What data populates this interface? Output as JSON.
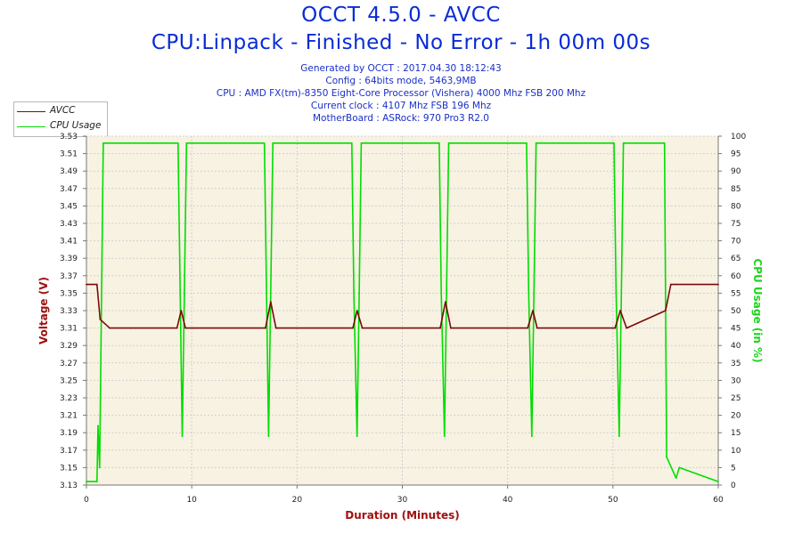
{
  "header": {
    "title": "OCCT 4.5.0 - AVCC",
    "subtitle": "CPU:Linpack - Finished - No Error - 1h 00m 00s",
    "info_lines": [
      "Generated by OCCT : 2017.04.30 18:12:43",
      "Config : 64bits mode, 5463,9MB",
      "CPU : AMD FX(tm)-8350 Eight-Core Processor (Vishera) 4000 Mhz FSB 200 Mhz",
      "Current clock : 4107 Mhz FSB 196 Mhz",
      "MotherBoard : ASRock: 970 Pro3 R2.0"
    ]
  },
  "legend": {
    "items": [
      {
        "label": "AVCC",
        "color": "#7a0a0a"
      },
      {
        "label": "CPU Usage",
        "color": "#00dd00"
      }
    ]
  },
  "colors": {
    "plot_bg": "#f8f2e2",
    "grid": "#d0d0d0",
    "avcc": "#7a0a0a",
    "cpu": "#00dd00",
    "left_axis_label": "#a01010",
    "right_axis_label": "#1ed41e",
    "x_axis_label": "#a01010"
  },
  "chart_data": {
    "type": "line",
    "xlabel": "Duration (Minutes)",
    "ylabel": "Voltage (V)",
    "y2label": "CPU Usage (in %)",
    "xlim": [
      0,
      60
    ],
    "ylim": [
      3.13,
      3.53
    ],
    "y2lim": [
      0,
      100
    ],
    "x_ticks": [
      "0",
      "10",
      "20",
      "30",
      "40",
      "50",
      "60"
    ],
    "y_ticks": [
      "3.13",
      "3.15",
      "3.17",
      "3.19",
      "3.21",
      "3.23",
      "3.25",
      "3.27",
      "3.29",
      "3.31",
      "3.33",
      "3.35",
      "3.37",
      "3.39",
      "3.41",
      "3.43",
      "3.45",
      "3.47",
      "3.49",
      "3.51",
      "3.53"
    ],
    "y2_ticks": [
      "0",
      "5",
      "10",
      "15",
      "20",
      "25",
      "30",
      "35",
      "40",
      "45",
      "50",
      "55",
      "60",
      "65",
      "70",
      "75",
      "80",
      "85",
      "90",
      "95",
      "100"
    ],
    "series": [
      {
        "name": "CPU Usage",
        "axis": "right",
        "x": [
          0,
          1.0,
          1.1,
          1.25,
          1.6,
          8.7,
          8.9,
          9.1,
          9.3,
          9.5,
          16.9,
          17.1,
          17.3,
          17.5,
          17.7,
          25.2,
          25.4,
          25.7,
          25.9,
          26.1,
          33.5,
          33.7,
          34.0,
          34.2,
          34.4,
          41.8,
          42.0,
          42.3,
          42.5,
          42.7,
          50.1,
          50.3,
          50.6,
          50.8,
          51.0,
          54.9,
          55.1,
          56.0,
          56.3,
          60
        ],
        "y": [
          1,
          1,
          17,
          5,
          98,
          98,
          55,
          14,
          55,
          98,
          98,
          55,
          14,
          55,
          98,
          98,
          55,
          14,
          55,
          98,
          98,
          55,
          14,
          55,
          98,
          98,
          55,
          14,
          55,
          98,
          98,
          55,
          14,
          55,
          98,
          98,
          8,
          2,
          5,
          1
        ]
      },
      {
        "name": "AVCC",
        "axis": "left",
        "x": [
          0,
          1.0,
          1.3,
          2.2,
          4.2,
          8.6,
          9.0,
          9.4,
          10.2,
          17.0,
          17.5,
          18.0,
          25.3,
          25.7,
          26.2,
          33.6,
          34.1,
          34.6,
          41.9,
          42.4,
          42.8,
          50.2,
          50.7,
          51.3,
          55.0,
          55.5,
          56.0,
          60
        ],
        "y": [
          3.36,
          3.36,
          3.32,
          3.31,
          3.31,
          3.31,
          3.33,
          3.31,
          3.31,
          3.31,
          3.34,
          3.31,
          3.31,
          3.33,
          3.31,
          3.31,
          3.34,
          3.31,
          3.31,
          3.33,
          3.31,
          3.31,
          3.33,
          3.31,
          3.33,
          3.36,
          3.36,
          3.36
        ]
      }
    ]
  }
}
